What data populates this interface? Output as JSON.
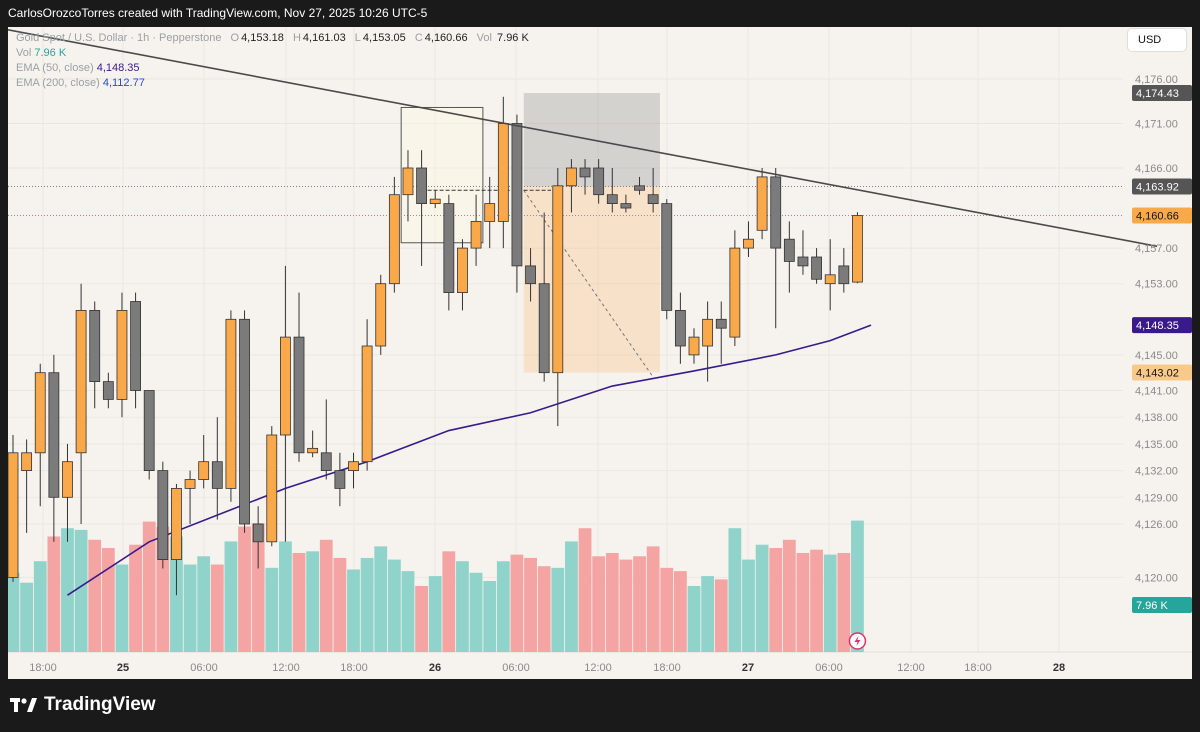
{
  "header": {
    "text": "CarlosOrozcoTorres created with TradingView.com, Nov 27, 2025 10:26 UTC-5"
  },
  "legend": {
    "symbol": "Gold Spot / U.S. Dollar · 1h · Pepperstone",
    "ohlc": [
      {
        "label": "O",
        "value": "4,153.18"
      },
      {
        "label": "H",
        "value": "4,161.03"
      },
      {
        "label": "L",
        "value": "4,153.05"
      },
      {
        "label": "C",
        "value": "4,160.66"
      }
    ],
    "vol_label": "Vol",
    "vol_value": "7.96 K",
    "vol2_label": "Vol",
    "vol2_value": "7.96 K",
    "ema50_label": "EMA (50, close)",
    "ema50_value": "4,148.35",
    "ema200_label": "EMA (200, close)",
    "ema200_value": "4,112.77"
  },
  "currency_button": "USD",
  "footer": {
    "brand": "TradingView"
  },
  "colors": {
    "up": "#f9a94a",
    "down": "#7b7b7b",
    "vol_up": "#8fd3cb",
    "vol_down": "#f4a5a3",
    "ema50": "#3a1a8a",
    "trend": "#4a4a4a",
    "background": "#f6f3ee"
  },
  "chart_data": {
    "type": "candlestick",
    "title": "Gold Spot / U.S. Dollar · 1h · Pepperstone",
    "ylim": [
      4118,
      4180
    ],
    "y_ticks": [
      "4,176.00",
      "4,171.00",
      "4,166.00",
      "4,157.00",
      "4,153.00",
      "4,145.00",
      "4,141.00",
      "4,138.00",
      "4,135.00",
      "4,132.00",
      "4,129.00",
      "4,126.00",
      "4,120.00"
    ],
    "x_ticks": [
      "18:00",
      "25",
      "06:00",
      "12:00",
      "18:00",
      "26",
      "06:00",
      "12:00",
      "18:00",
      "27",
      "06:00",
      "12:00",
      "18:00",
      "28"
    ],
    "price_labels": [
      {
        "text": "4,174.43",
        "value": 4174.43,
        "bg": "#555555",
        "fg": "#ffffff"
      },
      {
        "text": "4,163.92",
        "value": 4163.92,
        "bg": "#555555",
        "fg": "#ffffff"
      },
      {
        "text": "4,160.66",
        "value": 4160.66,
        "bg": "#f9a94a",
        "fg": "#111111"
      },
      {
        "text": "4,148.35",
        "value": 4148.35,
        "bg": "#3a1a8a",
        "fg": "#ffffff"
      },
      {
        "text": "4,143.02",
        "value": 4143.02,
        "bg": "#f9c98a",
        "fg": "#111111"
      },
      {
        "text": "7.96 K",
        "value": null,
        "bg": "#26a69a",
        "fg": "#ffffff"
      }
    ],
    "candles": [
      {
        "o": 4120.0,
        "h": 4136.0,
        "l": 4119.5,
        "c": 4134.0
      },
      {
        "o": 4132.0,
        "h": 4135.5,
        "l": 4125.0,
        "c": 4134.0
      },
      {
        "o": 4134.0,
        "h": 4144.0,
        "l": 4128.0,
        "c": 4143.0
      },
      {
        "o": 4143.0,
        "h": 4145.0,
        "l": 4124.0,
        "c": 4129.0
      },
      {
        "o": 4129.0,
        "h": 4135.0,
        "l": 4124.0,
        "c": 4133.0
      },
      {
        "o": 4134.0,
        "h": 4153.0,
        "l": 4126.0,
        "c": 4150.0
      },
      {
        "o": 4150.0,
        "h": 4151.0,
        "l": 4139.0,
        "c": 4142.0
      },
      {
        "o": 4142.0,
        "h": 4143.0,
        "l": 4139.0,
        "c": 4140.0
      },
      {
        "o": 4140.0,
        "h": 4152.0,
        "l": 4138.0,
        "c": 4150.0
      },
      {
        "o": 4151.0,
        "h": 4152.0,
        "l": 4139.0,
        "c": 4141.0
      },
      {
        "o": 4141.0,
        "h": 4141.0,
        "l": 4131.0,
        "c": 4132.0
      },
      {
        "o": 4132.0,
        "h": 4133.0,
        "l": 4121.0,
        "c": 4122.0
      },
      {
        "o": 4122.0,
        "h": 4130.5,
        "l": 4118.0,
        "c": 4130.0
      },
      {
        "o": 4130.0,
        "h": 4132.0,
        "l": 4126.0,
        "c": 4131.0
      },
      {
        "o": 4131.0,
        "h": 4136.0,
        "l": 4130.0,
        "c": 4133.0
      },
      {
        "o": 4133.0,
        "h": 4138.0,
        "l": 4126.5,
        "c": 4130.0
      },
      {
        "o": 4130.0,
        "h": 4150.0,
        "l": 4128.5,
        "c": 4149.0
      },
      {
        "o": 4149.0,
        "h": 4150.0,
        "l": 4125.0,
        "c": 4126.0
      },
      {
        "o": 4126.0,
        "h": 4128.0,
        "l": 4121.0,
        "c": 4124.0
      },
      {
        "o": 4124.0,
        "h": 4137.0,
        "l": 4123.5,
        "c": 4136.0
      },
      {
        "o": 4136.0,
        "h": 4155.0,
        "l": 4124.0,
        "c": 4147.0
      },
      {
        "o": 4147.0,
        "h": 4152.0,
        "l": 4133.0,
        "c": 4134.0
      },
      {
        "o": 4134.0,
        "h": 4136.5,
        "l": 4133.5,
        "c": 4134.5
      },
      {
        "o": 4134.0,
        "h": 4140.0,
        "l": 4131.0,
        "c": 4132.0
      },
      {
        "o": 4132.0,
        "h": 4134.0,
        "l": 4128.0,
        "c": 4130.0
      },
      {
        "o": 4132.0,
        "h": 4134.0,
        "l": 4130.0,
        "c": 4133.0
      },
      {
        "o": 4133.0,
        "h": 4149.0,
        "l": 4132.0,
        "c": 4146.0
      },
      {
        "o": 4146.0,
        "h": 4154.0,
        "l": 4145.0,
        "c": 4153.0
      },
      {
        "o": 4153.0,
        "h": 4165.0,
        "l": 4152.0,
        "c": 4163.0
      },
      {
        "o": 4163.0,
        "h": 4168.0,
        "l": 4160.0,
        "c": 4166.0
      },
      {
        "o": 4166.0,
        "h": 4168.0,
        "l": 4155.0,
        "c": 4162.0
      },
      {
        "o": 4162.0,
        "h": 4163.5,
        "l": 4161.5,
        "c": 4162.5
      },
      {
        "o": 4162.0,
        "h": 4163.0,
        "l": 4150.0,
        "c": 4152.0
      },
      {
        "o": 4152.0,
        "h": 4158.0,
        "l": 4150.0,
        "c": 4157.0
      },
      {
        "o": 4157.0,
        "h": 4163.0,
        "l": 4155.0,
        "c": 4160.0
      },
      {
        "o": 4160.0,
        "h": 4165.0,
        "l": 4157.0,
        "c": 4162.0
      },
      {
        "o": 4160.0,
        "h": 4174.0,
        "l": 4157.0,
        "c": 4171.0
      },
      {
        "o": 4171.0,
        "h": 4172.0,
        "l": 4152.0,
        "c": 4155.0
      },
      {
        "o": 4155.0,
        "h": 4157.0,
        "l": 4151.0,
        "c": 4153.0
      },
      {
        "o": 4153.0,
        "h": 4161.0,
        "l": 4142.0,
        "c": 4143.0
      },
      {
        "o": 4143.0,
        "h": 4166.0,
        "l": 4137.0,
        "c": 4164.0
      },
      {
        "o": 4164.0,
        "h": 4167.0,
        "l": 4161.0,
        "c": 4166.0
      },
      {
        "o": 4166.0,
        "h": 4167.0,
        "l": 4163.0,
        "c": 4165.0
      },
      {
        "o": 4166.0,
        "h": 4167.0,
        "l": 4162.0,
        "c": 4163.0
      },
      {
        "o": 4163.0,
        "h": 4166.0,
        "l": 4161.0,
        "c": 4162.0
      },
      {
        "o": 4162.0,
        "h": 4163.0,
        "l": 4161.0,
        "c": 4161.5
      },
      {
        "o": 4164.0,
        "h": 4165.0,
        "l": 4163.0,
        "c": 4163.5
      },
      {
        "o": 4163.0,
        "h": 4166.0,
        "l": 4161.0,
        "c": 4162.0
      },
      {
        "o": 4162.0,
        "h": 4162.5,
        "l": 4149.0,
        "c": 4150.0
      },
      {
        "o": 4150.0,
        "h": 4152.0,
        "l": 4144.0,
        "c": 4146.0
      },
      {
        "o": 4145.0,
        "h": 4148.0,
        "l": 4144.0,
        "c": 4147.0
      },
      {
        "o": 4146.0,
        "h": 4151.0,
        "l": 4142.0,
        "c": 4149.0
      },
      {
        "o": 4149.0,
        "h": 4151.0,
        "l": 4144.0,
        "c": 4148.0
      },
      {
        "o": 4147.0,
        "h": 4159.0,
        "l": 4146.0,
        "c": 4157.0
      },
      {
        "o": 4157.0,
        "h": 4160.0,
        "l": 4156.0,
        "c": 4158.0
      },
      {
        "o": 4159.0,
        "h": 4166.0,
        "l": 4158.0,
        "c": 4165.0
      },
      {
        "o": 4165.0,
        "h": 4166.0,
        "l": 4148.0,
        "c": 4157.0
      },
      {
        "o": 4158.0,
        "h": 4160.0,
        "l": 4152.0,
        "c": 4155.5
      },
      {
        "o": 4156.0,
        "h": 4159.0,
        "l": 4154.0,
        "c": 4155.0
      },
      {
        "o": 4156.0,
        "h": 4157.0,
        "l": 4153.0,
        "c": 4153.5
      },
      {
        "o": 4153.0,
        "h": 4158.0,
        "l": 4150.0,
        "c": 4154.0
      },
      {
        "o": 4155.0,
        "h": 4157.0,
        "l": 4152.0,
        "c": 4153.0
      },
      {
        "o": 4153.18,
        "h": 4161.03,
        "l": 4153.05,
        "c": 4160.66
      }
    ],
    "volume": [
      4.8,
      4.2,
      5.5,
      7.0,
      7.5,
      7.4,
      6.8,
      6.3,
      5.3,
      6.5,
      7.9,
      7.6,
      7.0,
      5.3,
      5.8,
      5.3,
      6.7,
      7.6,
      7.8,
      5.1,
      6.7,
      6.0,
      6.1,
      6.8,
      5.7,
      5.0,
      5.7,
      6.4,
      5.6,
      4.9,
      4.0,
      4.6,
      6.1,
      5.5,
      4.8,
      4.3,
      5.5,
      5.9,
      5.7,
      5.2,
      5.1,
      6.7,
      7.5,
      5.8,
      6.0,
      5.6,
      5.8,
      6.4,
      5.1,
      4.9,
      4.0,
      4.6,
      4.4,
      7.5,
      5.6,
      6.5,
      6.3,
      6.8,
      6.0,
      6.2,
      5.9,
      6.0,
      7.96
    ],
    "ema50": [
      [
        4,
        4118.0
      ],
      [
        10,
        4124.0
      ],
      [
        20,
        4130.0
      ],
      [
        26,
        4133.0
      ],
      [
        32,
        4136.5
      ],
      [
        38,
        4138.5
      ],
      [
        44,
        4141.5
      ],
      [
        50,
        4143.2
      ],
      [
        56,
        4145.0
      ],
      [
        60,
        4146.6
      ],
      [
        63,
        4148.35
      ]
    ],
    "trendline": {
      "from": [
        -2,
        4182.0
      ],
      "to": [
        84,
        4157.2
      ]
    },
    "position_tool": {
      "start_index": 37.5,
      "end_index": 47.5,
      "entry": 4163.92,
      "target": 4174.43,
      "stop": 4143.02
    },
    "range_box": {
      "start_index": 28.5,
      "end_index": 34.5,
      "top": 4172.8,
      "bottom": 4157.6
    }
  }
}
